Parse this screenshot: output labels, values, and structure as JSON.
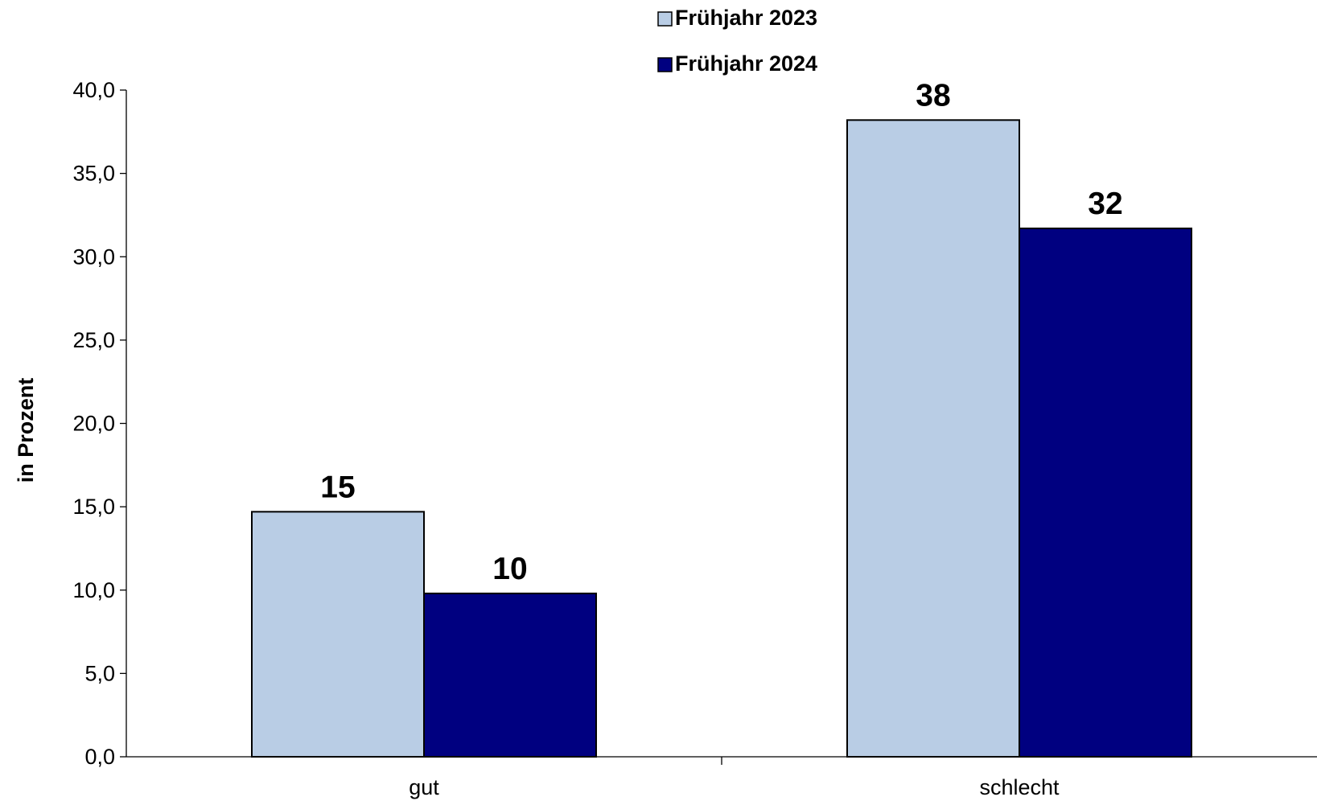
{
  "chart_data": {
    "type": "bar",
    "title": "",
    "xlabel": "",
    "ylabel": "in Prozent",
    "categories": [
      "gut",
      "schlecht"
    ],
    "series": [
      {
        "name": "Frühjahr 2023",
        "values": [
          14.7,
          38.2
        ],
        "labels": [
          "15",
          "38"
        ],
        "color": "#b9cde5"
      },
      {
        "name": "Frühjahr 2024",
        "values": [
          9.8,
          31.7
        ],
        "labels": [
          "10",
          "32"
        ],
        "color": "#000080"
      }
    ],
    "ylim": [
      0,
      40
    ],
    "yticks": [
      "0,0",
      "5,0",
      "10,0",
      "15,0",
      "20,0",
      "25,0",
      "30,0",
      "35,0",
      "40,0"
    ],
    "grid": false,
    "legend_position": "top-center"
  }
}
